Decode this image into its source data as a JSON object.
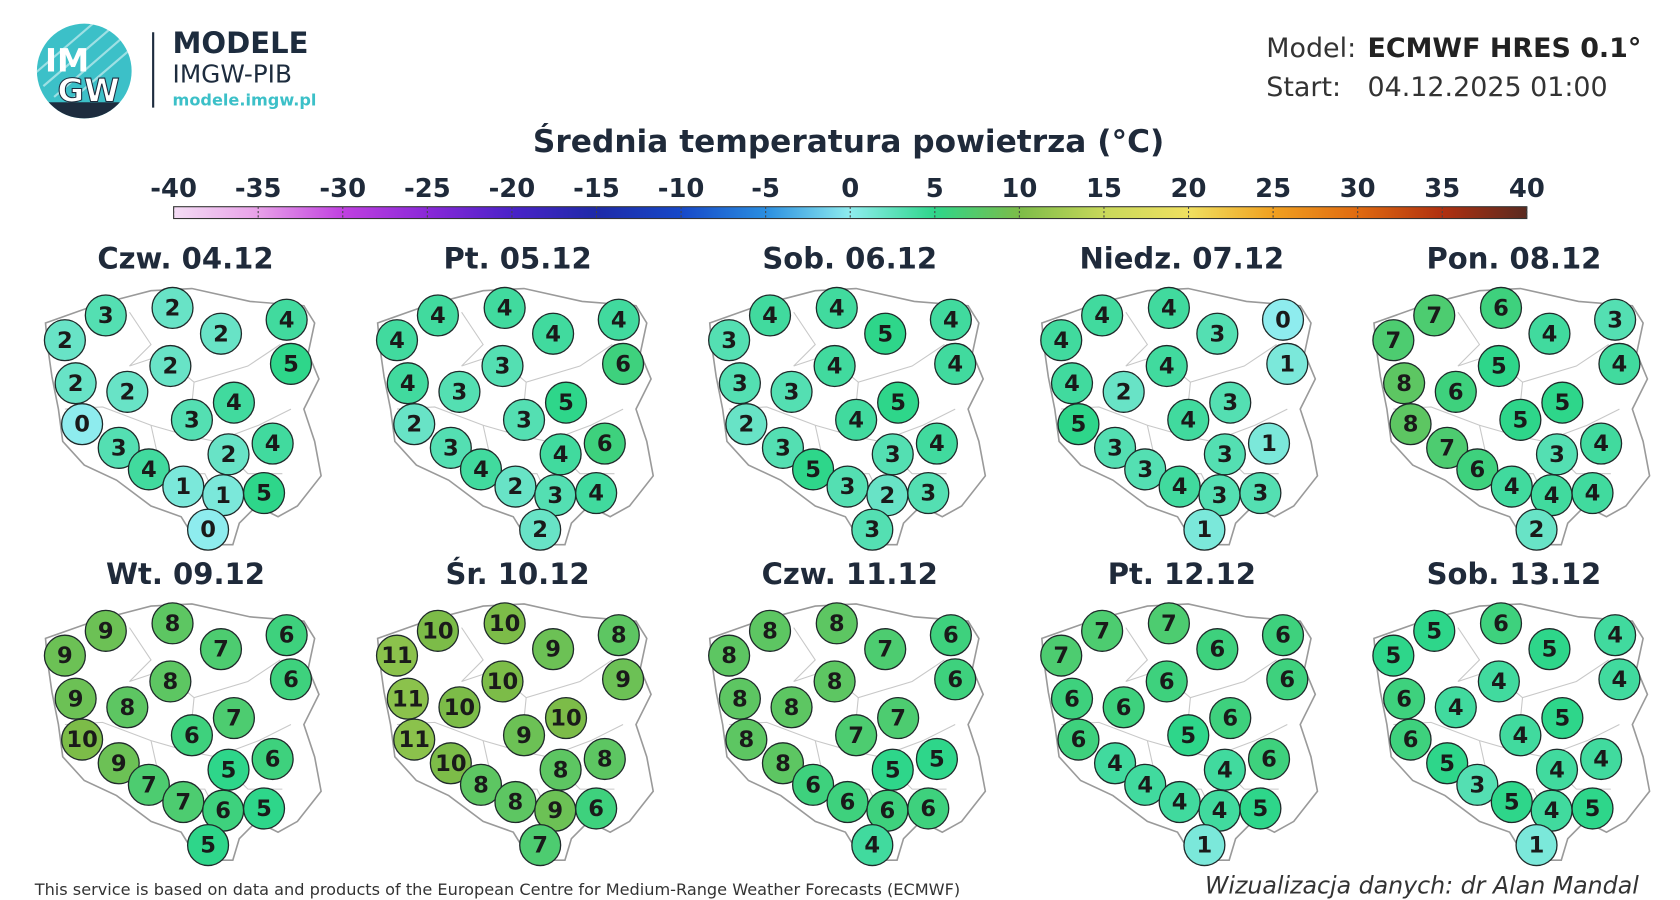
{
  "header": {
    "logo": [
      "IM",
      "GW"
    ],
    "brand": "MODELE",
    "org": "IMGW-PIB",
    "url": "modele.imgw.pl",
    "model_label": "Model:",
    "model": "ECMWF HRES 0.1°",
    "start_label": "Start:",
    "start": "04.12.2025 01:00"
  },
  "title": "Średnia temperatura powietrza (°C)",
  "colorbar": {
    "ticks": [
      -40,
      -35,
      -30,
      -25,
      -20,
      -15,
      -10,
      -5,
      0,
      5,
      10,
      15,
      20,
      25,
      30,
      35,
      40
    ],
    "colors": [
      "#f4dcf4",
      "#e8a0e8",
      "#c040e0",
      "#8a28d8",
      "#4a22c8",
      "#1e2aa8",
      "#1648c8",
      "#2a8ee0",
      "#8eecee",
      "#2ed68a",
      "#7cbc48",
      "#c8d85a",
      "#f0e060",
      "#f0a020",
      "#e06a10",
      "#b03010",
      "#5a2a20"
    ]
  },
  "maps": [
    {
      "title": "Czw. 04.12",
      "values": [
        2,
        3,
        2,
        2,
        4,
        5,
        2,
        2,
        2,
        0,
        3,
        4,
        3,
        4,
        2,
        4,
        1,
        1,
        5,
        0
      ]
    },
    {
      "title": "Pt. 05.12",
      "values": [
        4,
        4,
        4,
        4,
        4,
        6,
        3,
        4,
        3,
        2,
        3,
        5,
        3,
        4,
        4,
        6,
        2,
        3,
        4,
        2
      ]
    },
    {
      "title": "Sob. 06.12",
      "values": [
        3,
        4,
        4,
        5,
        4,
        4,
        4,
        3,
        3,
        2,
        4,
        5,
        3,
        5,
        3,
        4,
        3,
        2,
        3,
        3
      ]
    },
    {
      "title": "Niedz. 07.12",
      "values": [
        4,
        4,
        4,
        3,
        0,
        1,
        4,
        4,
        2,
        5,
        4,
        3,
        3,
        3,
        3,
        1,
        4,
        3,
        3,
        1
      ]
    },
    {
      "title": "Pon. 08.12",
      "values": [
        7,
        7,
        6,
        4,
        3,
        4,
        5,
        8,
        6,
        8,
        5,
        5,
        7,
        6,
        3,
        4,
        4,
        4,
        4,
        2
      ]
    },
    {
      "title": "Wt. 09.12",
      "values": [
        9,
        9,
        8,
        7,
        6,
        6,
        8,
        9,
        8,
        10,
        6,
        7,
        9,
        7,
        5,
        6,
        7,
        6,
        5,
        5
      ]
    },
    {
      "title": "Śr. 10.12",
      "values": [
        11,
        10,
        10,
        9,
        8,
        9,
        10,
        11,
        10,
        11,
        9,
        10,
        10,
        8,
        8,
        8,
        8,
        9,
        6,
        7
      ]
    },
    {
      "title": "Czw. 11.12",
      "values": [
        8,
        8,
        8,
        7,
        6,
        6,
        8,
        8,
        8,
        8,
        7,
        7,
        8,
        6,
        5,
        5,
        6,
        6,
        6,
        4
      ]
    },
    {
      "title": "Pt. 12.12",
      "values": [
        7,
        7,
        7,
        6,
        6,
        6,
        6,
        6,
        6,
        6,
        5,
        6,
        4,
        4,
        4,
        6,
        4,
        4,
        5,
        1
      ]
    },
    {
      "title": "Sob. 13.12",
      "values": [
        5,
        5,
        6,
        5,
        4,
        4,
        4,
        6,
        4,
        6,
        4,
        5,
        5,
        3,
        4,
        4,
        5,
        4,
        5,
        1
      ]
    }
  ],
  "footer": {
    "source": "This service is based on data and products of the European Centre for Medium-Range Weather Forecasts (ECMWF)",
    "credit": "Wizualizacja danych: dr Alan Mandal"
  }
}
